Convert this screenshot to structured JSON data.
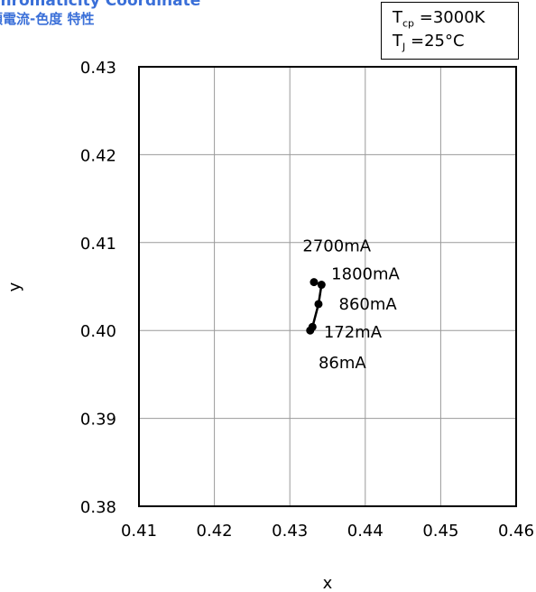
{
  "title": {
    "english": "Chromaticity Coordinate",
    "japanese": "順電流-色度 特性"
  },
  "conditions": {
    "tcp_symbol": "T",
    "tcp_subscript": "cp",
    "tcp_value": "=3000K",
    "tj_symbol": "T",
    "tj_subscript": "J",
    "tj_value": "=25°C"
  },
  "chart_data": {
    "type": "scatter",
    "title": "Chromaticity Coordinate",
    "xlabel": "x",
    "ylabel": "y",
    "xlim": [
      0.41,
      0.46
    ],
    "ylim": [
      0.38,
      0.43
    ],
    "x_ticks": [
      "0.41",
      "0.42",
      "0.43",
      "0.44",
      "0.45",
      "0.46"
    ],
    "y_ticks": [
      "0.38",
      "0.39",
      "0.40",
      "0.41",
      "0.42",
      "0.43"
    ],
    "grid": true,
    "series": [
      {
        "points": [
          {
            "x": 0.4327,
            "y": 0.4
          },
          {
            "x": 0.433,
            "y": 0.4004
          },
          {
            "x": 0.4338,
            "y": 0.403
          },
          {
            "x": 0.4342,
            "y": 0.4052
          },
          {
            "x": 0.4332,
            "y": 0.4055
          }
        ]
      }
    ],
    "annotations": [
      {
        "text": "2700mA",
        "x": 0.4317,
        "y": 0.409
      },
      {
        "text": "1800mA",
        "x": 0.4355,
        "y": 0.4058
      },
      {
        "text": "860mA",
        "x": 0.4365,
        "y": 0.4024
      },
      {
        "text": "172mA",
        "x": 0.4345,
        "y": 0.3992
      },
      {
        "text": "86mA",
        "x": 0.4338,
        "y": 0.3957
      }
    ]
  }
}
